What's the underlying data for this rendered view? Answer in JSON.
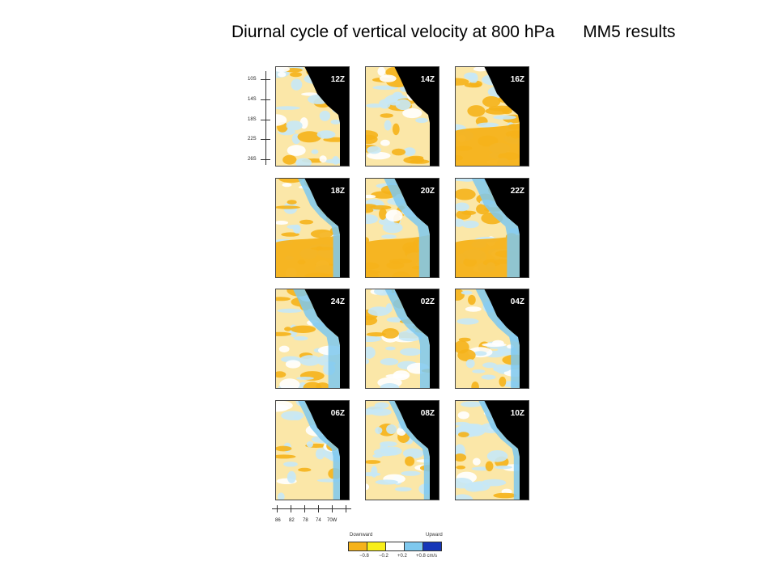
{
  "title": "Diurnal cycle of vertical velocity at 800 hPa      MM5 results",
  "latitude_ticks": [
    "10S",
    "14S",
    "18S",
    "22S",
    "26S"
  ],
  "longitude_ticks": [
    "86",
    "82",
    "78",
    "74",
    "70W"
  ],
  "panels": [
    {
      "label": "12Z"
    },
    {
      "label": "14Z"
    },
    {
      "label": "16Z"
    },
    {
      "label": "18Z"
    },
    {
      "label": "20Z"
    },
    {
      "label": "22Z"
    },
    {
      "label": "24Z"
    },
    {
      "label": "02Z"
    },
    {
      "label": "04Z"
    },
    {
      "label": "06Z"
    },
    {
      "label": "08Z"
    },
    {
      "label": "10Z"
    }
  ],
  "legend": {
    "downward": "Downward",
    "upward": "Upward",
    "ticks": [
      "−0.8",
      "−0.2",
      "+0.2",
      "+0.8 cm/s"
    ],
    "colors": [
      "#f5b21a",
      "#f8ee18",
      "#ffffff",
      "#7ec8ee",
      "#1636b8"
    ]
  },
  "colors": {
    "downward_strong": "#f5b21a",
    "downward_weak": "#fbe7a8",
    "neutral": "#ffffff",
    "upward_weak": "#c7e8f6",
    "upward_strong": "#7ec8ee",
    "ocean_mask": "#000000"
  }
}
